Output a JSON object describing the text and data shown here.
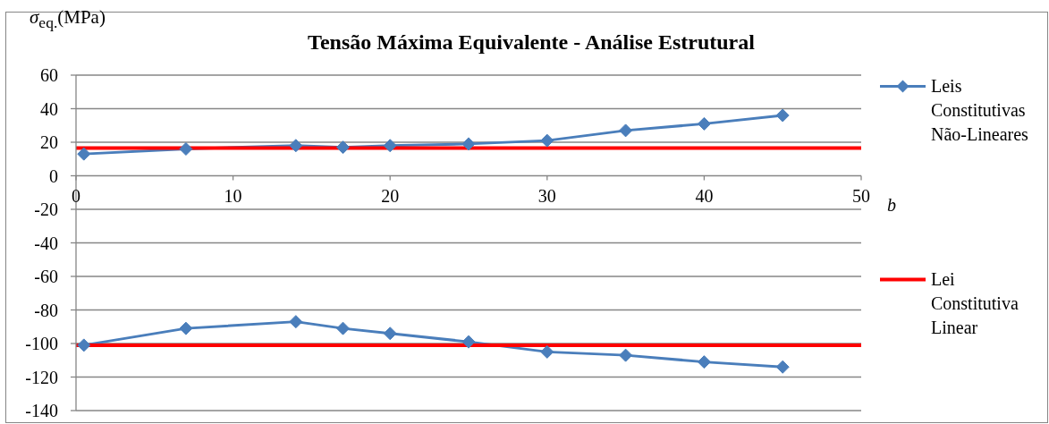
{
  "chart_data": {
    "type": "line",
    "title": "Tensão Máxima Equivalente - Análise Estrutural",
    "xlabel": "b",
    "ylabel": "σ$_{eq.}$(MPa)",
    "xlim": [
      0,
      50
    ],
    "xticks": [
      0,
      10,
      20,
      30,
      40,
      50
    ],
    "ylim": [
      -140,
      60
    ],
    "yticks": [
      -140,
      -120,
      -100,
      -80,
      -60,
      -40,
      -20,
      0,
      20,
      40,
      60
    ],
    "grid": "y",
    "legend": "right",
    "marker": "diamond",
    "line_style": "solid",
    "series": [
      {
        "name": "Leis Constitutivas Não-Lineares",
        "color": "#4a7ebb",
        "x": [
          0.5,
          7,
          14,
          17,
          20,
          25,
          30,
          35,
          40,
          45
        ],
        "values": [
          13,
          16,
          18,
          17,
          18,
          19,
          21,
          27,
          31,
          36
        ]
      },
      {
        "color": "#4a7ebb",
        "x": [
          0.5,
          7,
          14,
          17,
          20,
          25,
          30,
          35,
          40,
          45
        ],
        "values": [
          -101,
          -91,
          -87,
          -91,
          -94,
          -99,
          -105,
          -107,
          -111,
          -114
        ]
      },
      {
        "name": "Lei Constitutiva Linear",
        "color": "#ff0000",
        "marker": "none",
        "x": [
          0,
          50
        ],
        "values": [
          16.5,
          16.5
        ]
      },
      {
        "color": "#ff0000",
        "marker": "none",
        "x": [
          0,
          50
        ],
        "values": [
          -101,
          -101
        ]
      }
    ]
  }
}
